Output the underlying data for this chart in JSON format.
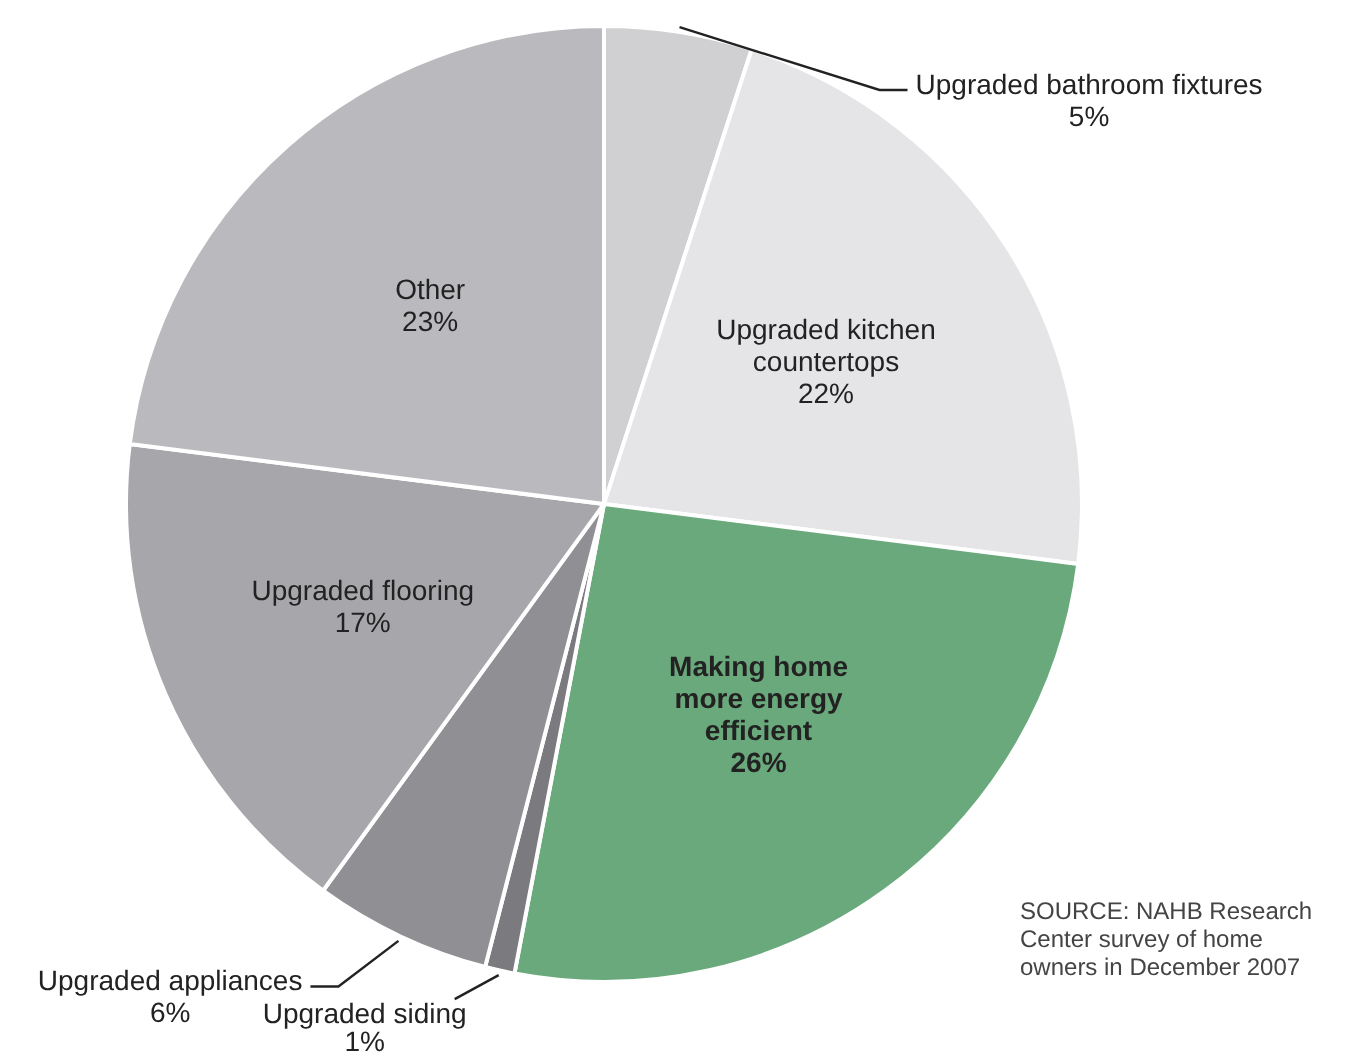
{
  "chart_data": {
    "type": "pie",
    "categories": [
      "Upgraded bathroom fixtures",
      "Upgraded kitchen countertops",
      "Making home more energy efficient",
      "Upgraded siding",
      "Upgraded appliances",
      "Upgraded flooring",
      "Other"
    ],
    "values": [
      5,
      22,
      26,
      1,
      6,
      17,
      23
    ],
    "value_labels": [
      "5%",
      "22%",
      "26%",
      "1%",
      "6%",
      "17%",
      "23%"
    ],
    "colors": [
      "#d0d0d2",
      "#e5e5e7",
      "#6aa97c",
      "#7b7b7f",
      "#909094",
      "#a7a7ab",
      "#bababe"
    ],
    "annotations": [
      "SOURCE: NAHB Research Center survey of home owners in December 2007"
    ]
  }
}
